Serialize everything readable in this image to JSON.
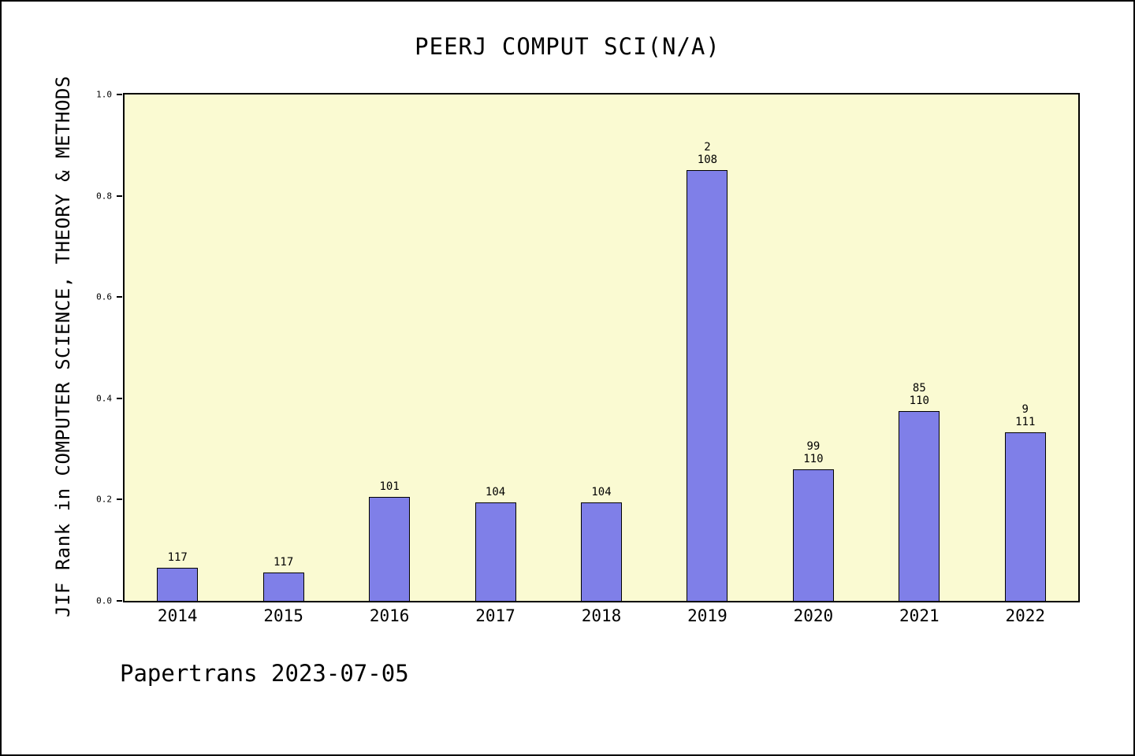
{
  "chart_data": {
    "type": "bar",
    "title": "PEERJ COMPUT SCI(N/A)",
    "xlabel": "",
    "ylabel": "JIF Rank in COMPUTER SCIENCE, THEORY & METHODS",
    "ylim": [
      0.0,
      1.0
    ],
    "yticks": [
      0.0,
      0.2,
      0.4,
      0.6,
      0.8,
      1.0
    ],
    "grid": false,
    "legend_position": "none",
    "categories": [
      "2014",
      "2015",
      "2016",
      "2017",
      "2018",
      "2019",
      "2020",
      "2021",
      "2022"
    ],
    "values": [
      0.065,
      0.056,
      0.205,
      0.194,
      0.194,
      0.851,
      0.26,
      0.375,
      0.333
    ],
    "bar_labels": [
      [
        "117"
      ],
      [
        "117"
      ],
      [
        "101"
      ],
      [
        "104"
      ],
      [
        "104"
      ],
      [
        "2",
        "108"
      ],
      [
        "99",
        "110"
      ],
      [
        "85",
        "110"
      ],
      [
        "9",
        "111"
      ]
    ],
    "annotation": "Papertrans 2023-07-05",
    "colors": {
      "bar_fill": "#7f7fe8",
      "bar_edge": "#000000",
      "plot_bg": "#fafad2",
      "page_bg": "#ffffff",
      "axis": "#000000"
    }
  }
}
